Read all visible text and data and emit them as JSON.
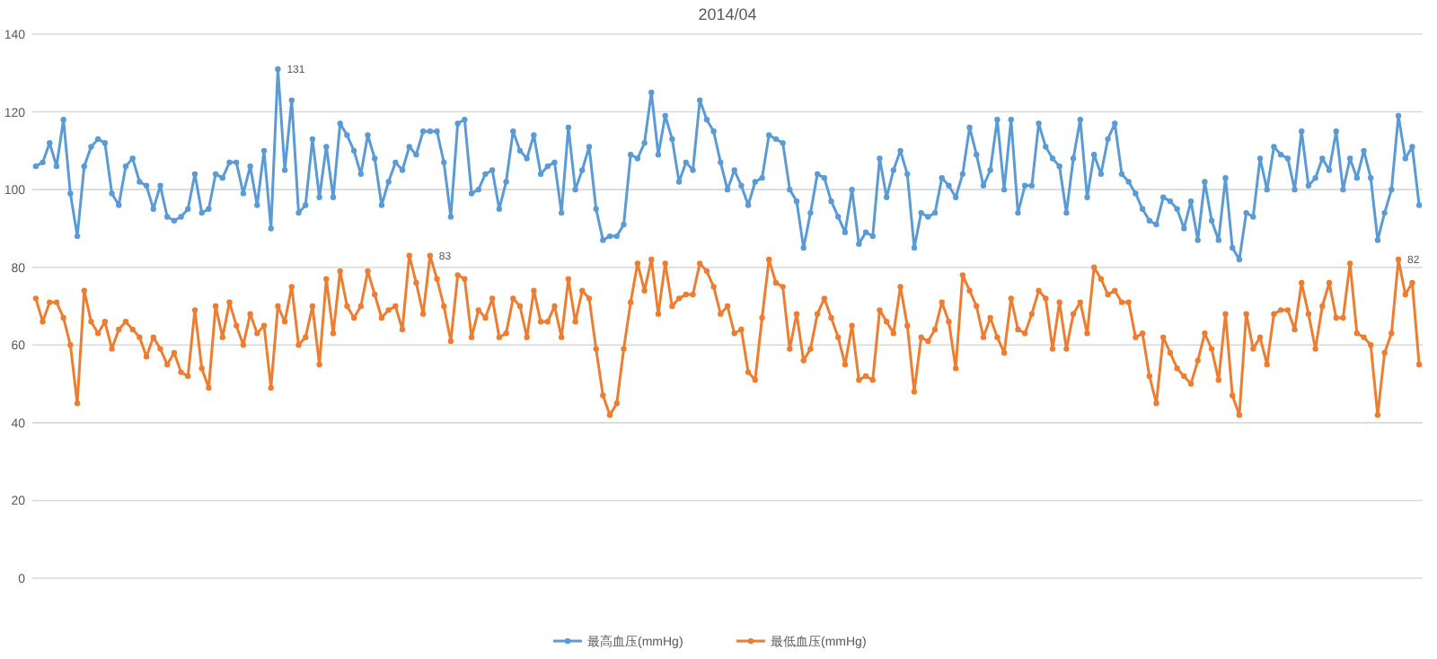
{
  "chart_data": {
    "type": "line",
    "title": "2014/04",
    "ylim": [
      0,
      140
    ],
    "yticks": [
      0,
      20,
      40,
      60,
      80,
      100,
      120,
      140
    ],
    "grid": "y",
    "legend": "bottom",
    "marker": "circle",
    "line_style": "solid",
    "categories": [
      null,
      null,
      null,
      null,
      null,
      null,
      null,
      null,
      null,
      null,
      null,
      null,
      null,
      null,
      null,
      null,
      null,
      null,
      null,
      null,
      null,
      null,
      null,
      null,
      null,
      null,
      null,
      null,
      null,
      null,
      null,
      null,
      null,
      null,
      null,
      null,
      null,
      null,
      null,
      null,
      null,
      null,
      null,
      null,
      null,
      null,
      null,
      null,
      null,
      null,
      null,
      null,
      null,
      null,
      null,
      null,
      null,
      null,
      null,
      null,
      null,
      null,
      null,
      null,
      null,
      null,
      null,
      null,
      null,
      null,
      null,
      null,
      null,
      null,
      null,
      null,
      null,
      null,
      null,
      null,
      null,
      null,
      null,
      null,
      null,
      null,
      null,
      null,
      null,
      null,
      null,
      null,
      null,
      null,
      null,
      null,
      null,
      null,
      null,
      null,
      null,
      null,
      null,
      null,
      null,
      null,
      null,
      null,
      null,
      null,
      null,
      null,
      null,
      null,
      null,
      null,
      null,
      null,
      null,
      null,
      null,
      null,
      null,
      null,
      null,
      null,
      null,
      null,
      null,
      null,
      null,
      null,
      null,
      null,
      null,
      null,
      null,
      null,
      null,
      null,
      null,
      null,
      null,
      null,
      null,
      null,
      null,
      null,
      null,
      null,
      null,
      null,
      null,
      null,
      null,
      null,
      null,
      null,
      null,
      null,
      null,
      null,
      null,
      null,
      null,
      null,
      null,
      null,
      null,
      null,
      null,
      null,
      null,
      null,
      null,
      null,
      null,
      null,
      null,
      null,
      null,
      null,
      null,
      null,
      null,
      null,
      null,
      null,
      null,
      null,
      null,
      null,
      null,
      null,
      null,
      null,
      null,
      null,
      null,
      null,
      null
    ],
    "series": [
      {
        "name": "最高血压(mmHg)",
        "color": "#5b9bd5",
        "values": [
          106,
          107,
          112,
          106,
          118,
          99,
          88,
          106,
          111,
          113,
          112,
          99,
          96,
          106,
          108,
          102,
          101,
          95,
          101,
          93,
          92,
          93,
          95,
          104,
          94,
          95,
          104,
          103,
          107,
          107,
          99,
          106,
          96,
          110,
          90,
          131,
          105,
          123,
          94,
          96,
          113,
          98,
          111,
          98,
          117,
          114,
          110,
          104,
          114,
          108,
          96,
          102,
          107,
          105,
          111,
          109,
          115,
          115,
          115,
          107,
          93,
          117,
          118,
          99,
          100,
          104,
          105,
          95,
          102,
          115,
          110,
          108,
          114,
          104,
          106,
          107,
          94,
          116,
          100,
          105,
          111,
          95,
          87,
          88,
          88,
          91,
          109,
          108,
          112,
          125,
          109,
          119,
          113,
          102,
          107,
          105,
          123,
          118,
          115,
          107,
          100,
          105,
          101,
          96,
          102,
          103,
          114,
          113,
          112,
          100,
          97,
          85,
          94,
          104,
          103,
          97,
          93,
          89,
          100,
          86,
          89,
          88,
          108,
          98,
          105,
          110,
          104,
          85,
          94,
          93,
          94,
          103,
          101,
          98,
          104,
          116,
          109,
          101,
          105,
          118,
          100,
          118,
          94,
          101,
          101,
          117,
          111,
          108,
          106,
          94,
          108,
          118,
          98,
          109,
          104,
          113,
          117,
          104,
          102,
          99,
          95,
          92,
          91,
          98,
          97,
          95,
          90,
          97,
          87,
          102,
          92,
          87,
          103,
          85,
          82,
          94,
          93,
          108,
          100,
          111,
          109,
          108,
          100,
          115,
          101,
          103,
          108,
          105,
          115,
          100,
          108,
          103,
          110,
          103,
          87,
          94,
          100,
          119,
          108,
          111,
          96
        ],
        "value_labels": [
          null,
          null,
          null,
          null,
          null,
          null,
          null,
          null,
          null,
          null,
          null,
          null,
          null,
          null,
          null,
          null,
          null,
          null,
          null,
          null,
          null,
          null,
          null,
          null,
          null,
          null,
          null,
          null,
          null,
          null,
          null,
          null,
          null,
          null,
          null,
          "131",
          null,
          null,
          null,
          null,
          null,
          null,
          null,
          null,
          null,
          null,
          null,
          null,
          null,
          null,
          null,
          null,
          null,
          null,
          null,
          null,
          null,
          null,
          null,
          null,
          null,
          null,
          null,
          null,
          null,
          null,
          null,
          null,
          null,
          null,
          null,
          null,
          null,
          null,
          null,
          null,
          null,
          null,
          null,
          null,
          null,
          null,
          null,
          null,
          null,
          null,
          null,
          null,
          null,
          null,
          null,
          null,
          null,
          null,
          null,
          null,
          null,
          null,
          null,
          null,
          null,
          null,
          null,
          null,
          null,
          null,
          null,
          null,
          null,
          null,
          null,
          null,
          null,
          null,
          null,
          null,
          null,
          null,
          null,
          null,
          null,
          null,
          null,
          null,
          null,
          null,
          null,
          null,
          null,
          null,
          null,
          null,
          null,
          null,
          null,
          null,
          null,
          null,
          null,
          null,
          null,
          null,
          null,
          null,
          null,
          null,
          null,
          null,
          null,
          null,
          null,
          null,
          null,
          null,
          null,
          null,
          null,
          null,
          null,
          null,
          null,
          null,
          null,
          null,
          null,
          null,
          null,
          null,
          null,
          null,
          null,
          null,
          null,
          null,
          null,
          null,
          null,
          null,
          null,
          null,
          null,
          null,
          null,
          null,
          null,
          null,
          null,
          null,
          null,
          null,
          null,
          null,
          null,
          null,
          null,
          null,
          null,
          null,
          null,
          null,
          null
        ]
      },
      {
        "name": "最低血压(mmHg)",
        "color": "#ed7d31",
        "values": [
          72,
          66,
          71,
          71,
          67,
          60,
          45,
          74,
          66,
          63,
          66,
          59,
          64,
          66,
          64,
          62,
          57,
          62,
          59,
          55,
          58,
          53,
          52,
          69,
          54,
          49,
          70,
          62,
          71,
          65,
          60,
          68,
          63,
          65,
          49,
          70,
          66,
          75,
          60,
          62,
          70,
          55,
          77,
          63,
          79,
          70,
          67,
          70,
          79,
          73,
          67,
          69,
          70,
          64,
          83,
          76,
          68,
          83,
          77,
          70,
          61,
          78,
          77,
          62,
          69,
          67,
          72,
          62,
          63,
          72,
          70,
          62,
          74,
          66,
          66,
          70,
          62,
          77,
          66,
          74,
          72,
          59,
          47,
          42,
          45,
          59,
          71,
          81,
          74,
          82,
          68,
          81,
          70,
          72,
          73,
          73,
          81,
          79,
          75,
          68,
          70,
          63,
          64,
          53,
          51,
          67,
          82,
          76,
          75,
          59,
          68,
          56,
          59,
          68,
          72,
          67,
          62,
          55,
          65,
          51,
          52,
          51,
          69,
          66,
          63,
          75,
          65,
          48,
          62,
          61,
          64,
          71,
          66,
          54,
          78,
          74,
          70,
          62,
          67,
          62,
          58,
          72,
          64,
          63,
          68,
          74,
          72,
          59,
          71,
          59,
          68,
          71,
          63,
          80,
          77,
          73,
          74,
          71,
          71,
          62,
          63,
          52,
          45,
          62,
          58,
          54,
          52,
          50,
          56,
          63,
          59,
          51,
          68,
          47,
          42,
          68,
          59,
          62,
          55,
          68,
          69,
          69,
          64,
          76,
          68,
          59,
          70,
          76,
          67,
          67,
          81,
          63,
          62,
          60,
          42,
          58,
          63,
          82,
          73,
          76,
          55
        ],
        "value_labels": [
          null,
          null,
          null,
          null,
          null,
          null,
          null,
          null,
          null,
          null,
          null,
          null,
          null,
          null,
          null,
          null,
          null,
          null,
          null,
          null,
          null,
          null,
          null,
          null,
          null,
          null,
          null,
          null,
          null,
          null,
          null,
          null,
          null,
          null,
          null,
          null,
          null,
          null,
          null,
          null,
          null,
          null,
          null,
          null,
          null,
          null,
          null,
          null,
          null,
          null,
          null,
          null,
          null,
          null,
          null,
          null,
          null,
          "83",
          null,
          null,
          null,
          null,
          null,
          null,
          null,
          null,
          null,
          null,
          null,
          null,
          null,
          null,
          null,
          null,
          null,
          null,
          null,
          null,
          null,
          null,
          null,
          null,
          null,
          null,
          null,
          null,
          null,
          null,
          null,
          null,
          null,
          null,
          null,
          null,
          null,
          null,
          null,
          null,
          null,
          null,
          null,
          null,
          null,
          null,
          null,
          null,
          null,
          null,
          null,
          null,
          null,
          null,
          null,
          null,
          null,
          null,
          null,
          null,
          null,
          null,
          null,
          null,
          null,
          null,
          null,
          null,
          null,
          null,
          null,
          null,
          null,
          null,
          null,
          null,
          null,
          null,
          null,
          null,
          null,
          null,
          null,
          null,
          null,
          null,
          null,
          null,
          null,
          null,
          null,
          null,
          null,
          null,
          null,
          null,
          null,
          null,
          null,
          null,
          null,
          null,
          null,
          null,
          null,
          null,
          null,
          null,
          null,
          null,
          null,
          null,
          null,
          null,
          null,
          null,
          null,
          null,
          null,
          null,
          null,
          null,
          null,
          null,
          null,
          null,
          null,
          null,
          null,
          null,
          null,
          null,
          null,
          null,
          null,
          null,
          null,
          null,
          null,
          "82",
          null,
          null,
          null
        ]
      }
    ]
  }
}
